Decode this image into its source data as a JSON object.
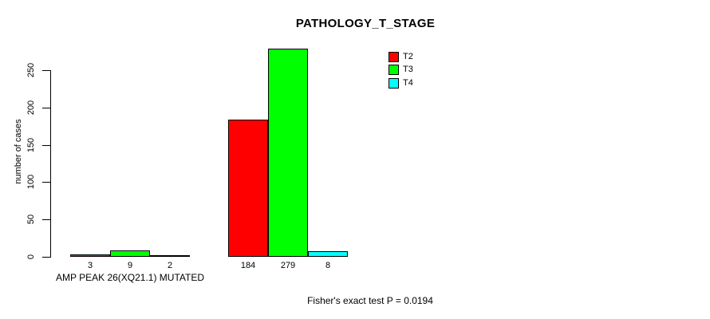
{
  "chart_data": {
    "type": "bar",
    "title": "PATHOLOGY_T_STAGE",
    "ylabel": "number of cases",
    "xlabel": "",
    "ylim": [
      0,
      250
    ],
    "yticks": [
      0,
      50,
      100,
      150,
      200,
      250
    ],
    "grid": false,
    "categories": [
      "AMP PEAK 26(XQ21.1) MUTATED",
      ""
    ],
    "series": [
      {
        "name": "T2",
        "color": "#ff0000",
        "values": [
          3,
          184
        ]
      },
      {
        "name": "T3",
        "color": "#00ff00",
        "values": [
          9,
          279
        ]
      },
      {
        "name": "T4",
        "color": "#00ffff",
        "values": [
          2,
          8
        ]
      }
    ],
    "legend": {
      "position": "top-right",
      "entries": [
        "T2",
        "T3",
        "T4"
      ]
    },
    "annotation": "Fisher's exact test P = 0.0194"
  }
}
